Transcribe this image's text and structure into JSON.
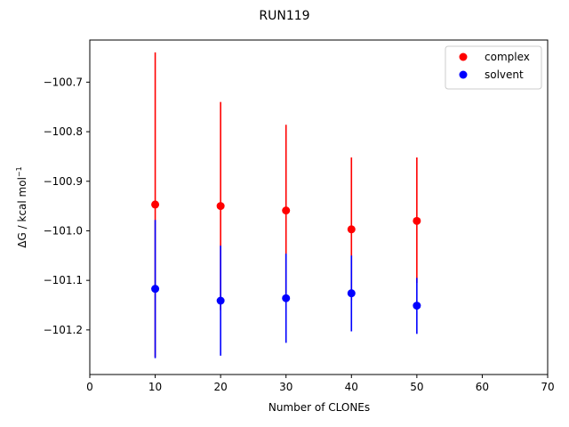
{
  "chart_data": {
    "type": "scatter",
    "title": "RUN119",
    "xlabel": "Number of CLONEs",
    "ylabel_main": "ΔG / kcal mol",
    "ylabel_sup": "−1",
    "xlim": [
      0,
      70
    ],
    "ylim": [
      -101.29,
      -100.615
    ],
    "xticks": [
      0,
      10,
      20,
      30,
      40,
      50,
      60,
      70
    ],
    "xtick_labels": [
      "0",
      "10",
      "20",
      "30",
      "40",
      "50",
      "60",
      "70"
    ],
    "yticks": [
      -100.7,
      -100.8,
      -100.9,
      -101.0,
      -101.1,
      -101.2
    ],
    "ytick_labels": [
      "−100.7",
      "−100.8",
      "−100.9",
      "−101.0",
      "−101.1",
      "−101.2"
    ],
    "grid": false,
    "legend_position": "top-right",
    "series": [
      {
        "name": "complex",
        "color": "#ff0000",
        "x": [
          10,
          20,
          30,
          40,
          50
        ],
        "y": [
          -100.947,
          -100.95,
          -100.959,
          -100.997,
          -100.98
        ],
        "yerr_low": [
          -101.255,
          -101.16,
          -101.13,
          -101.14,
          -101.105
        ],
        "yerr_high": [
          -100.64,
          -100.74,
          -100.786,
          -100.852,
          -100.852
        ]
      },
      {
        "name": "solvent",
        "color": "#0000ff",
        "x": [
          10,
          20,
          30,
          40,
          50
        ],
        "y": [
          -101.117,
          -101.141,
          -101.136,
          -101.126,
          -101.151
        ],
        "yerr_low": [
          -101.257,
          -101.252,
          -101.226,
          -101.203,
          -101.208
        ],
        "yerr_high": [
          -100.978,
          -101.03,
          -101.046,
          -101.05,
          -101.095
        ]
      }
    ]
  }
}
